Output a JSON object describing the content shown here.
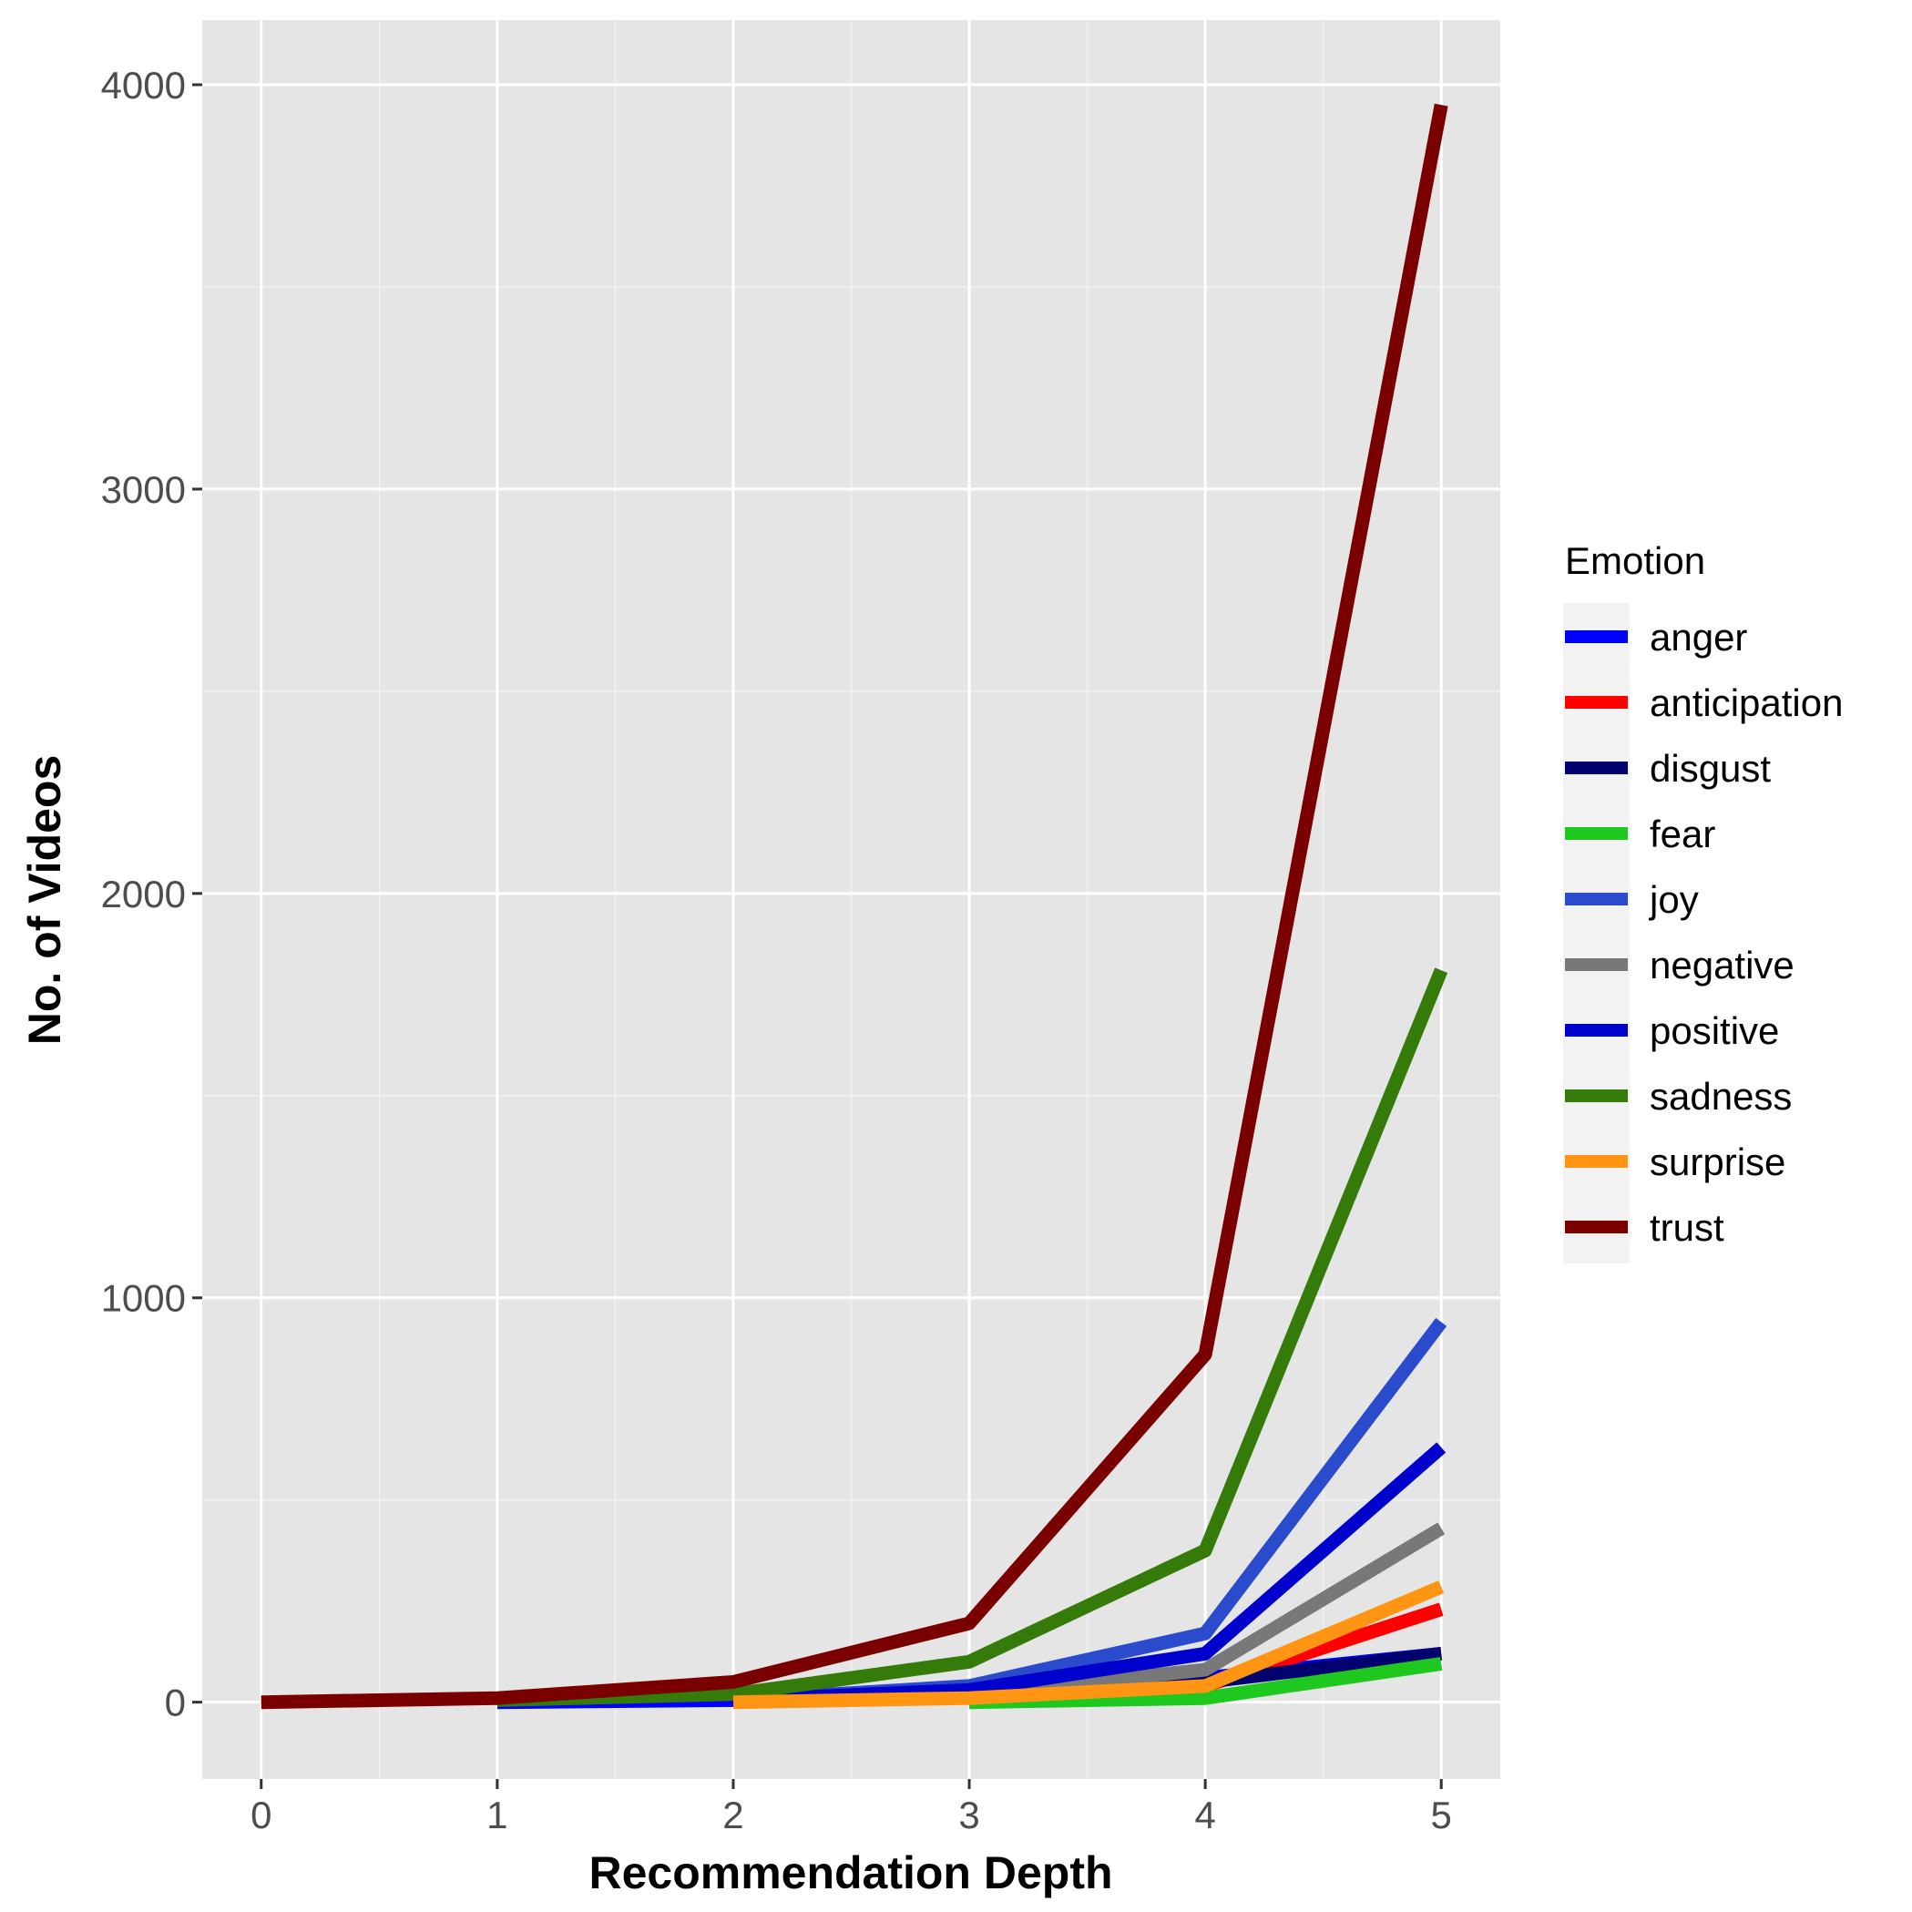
{
  "chart_data": {
    "type": "line",
    "xlabel": "Recommendation Depth",
    "ylabel": "No. of Videos",
    "xlim": [
      -0.25,
      5.25
    ],
    "ylim": [
      -190,
      4160
    ],
    "x_ticks": [
      0,
      1,
      2,
      3,
      4,
      5
    ],
    "y_ticks": [
      0,
      1000,
      2000,
      3000,
      4000
    ],
    "x_tick_labels": [
      "0",
      "1",
      "2",
      "3",
      "4",
      "5"
    ],
    "y_tick_labels": [
      "0",
      "1000",
      "2000",
      "3000",
      "4000"
    ],
    "grid": true,
    "legend_title": "Emotion",
    "legend_position": "right",
    "series": [
      {
        "name": "anger",
        "color": "#0000ff",
        "x": [
          1,
          2,
          3,
          4,
          5
        ],
        "y": [
          0,
          5,
          20,
          60,
          120
        ]
      },
      {
        "name": "anticipation",
        "color": "#ff0000",
        "x": [
          2,
          3,
          4,
          5
        ],
        "y": [
          5,
          15,
          40,
          230
        ]
      },
      {
        "name": "disgust",
        "color": "#00006e",
        "x": [
          2,
          3,
          4,
          5
        ],
        "y": [
          3,
          20,
          50,
          120
        ]
      },
      {
        "name": "fear",
        "color": "#1ec81e",
        "x": [
          3,
          4,
          5
        ],
        "y": [
          0,
          10,
          95
        ]
      },
      {
        "name": "joy",
        "color": "#2a4bcc",
        "x": [
          2,
          3,
          4,
          5
        ],
        "y": [
          5,
          40,
          170,
          940
        ]
      },
      {
        "name": "negative",
        "color": "#787878",
        "x": [
          2,
          3,
          4,
          5
        ],
        "y": [
          5,
          20,
          80,
          430
        ]
      },
      {
        "name": "positive",
        "color": "#0000cd",
        "x": [
          2,
          3,
          4,
          5
        ],
        "y": [
          5,
          30,
          120,
          630
        ]
      },
      {
        "name": "sadness",
        "color": "#347b0a",
        "x": [
          1,
          2,
          3,
          4,
          5
        ],
        "y": [
          5,
          20,
          100,
          375,
          1810
        ]
      },
      {
        "name": "surprise",
        "color": "#ff9512",
        "x": [
          2,
          3,
          4,
          5
        ],
        "y": [
          0,
          10,
          40,
          285
        ]
      },
      {
        "name": "trust",
        "color": "#7a0000",
        "x": [
          0,
          1,
          2,
          3,
          4,
          5
        ],
        "y": [
          0,
          10,
          50,
          195,
          860,
          3950
        ]
      }
    ]
  }
}
